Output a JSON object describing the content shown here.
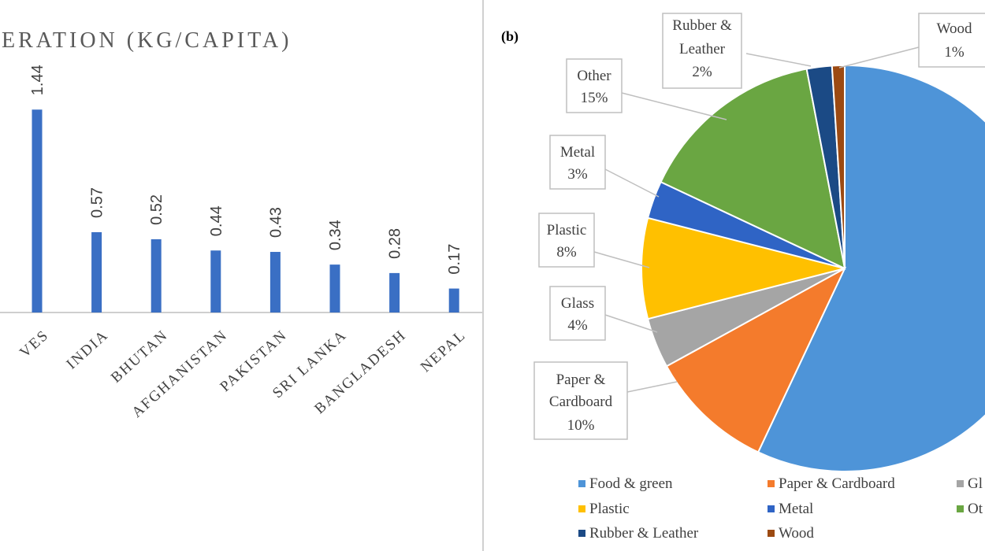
{
  "left_panel": {
    "title_fragment": "ERATION (KG/CAPITA)"
  },
  "right_panel": {
    "panel_label": "(b)"
  },
  "chart_data": [
    {
      "type": "bar",
      "title": "ERATION (KG/CAPITA)",
      "categories": [
        "VES",
        "INDIA",
        "BHUTAN",
        "AFGHANISTAN",
        "PAKISTAN",
        "SRI LANKA",
        "BANGLADESH",
        "NEPAL"
      ],
      "values": [
        1.44,
        0.57,
        0.52,
        0.44,
        0.43,
        0.34,
        0.28,
        0.17
      ],
      "value_labels": [
        "1.44",
        "0.57",
        "0.52",
        "0.44",
        "0.43",
        "0.34",
        "0.28",
        "0.17"
      ],
      "bar_color": "#3a6fc4",
      "ylim": [
        0,
        1.6
      ],
      "grid": false
    },
    {
      "type": "pie",
      "title": "",
      "slices": [
        {
          "name": "Food & green",
          "value": 57,
          "label": "",
          "color": "#4e94d8"
        },
        {
          "name": "Paper & Cardboard",
          "value": 10,
          "label": "10%",
          "color": "#f47b2c"
        },
        {
          "name": "Glass",
          "value": 4,
          "label": "4%",
          "color": "#a5a5a5"
        },
        {
          "name": "Plastic",
          "value": 8,
          "label": "8%",
          "color": "#ffc000"
        },
        {
          "name": "Metal",
          "value": 3,
          "label": "3%",
          "color": "#2f64c5"
        },
        {
          "name": "Other",
          "value": 15,
          "label": "15%",
          "color": "#6aa642"
        },
        {
          "name": "Rubber & Leather",
          "value": 2,
          "label": "2%",
          "color": "#1b4a85"
        },
        {
          "name": "Wood",
          "value": 1,
          "label": "1%",
          "color": "#9c4a12"
        }
      ],
      "callouts": [
        {
          "lines": [
            "Rubber &",
            "Leather",
            "2%"
          ]
        },
        {
          "lines": [
            "Wood",
            "1%"
          ]
        },
        {
          "lines": [
            "Other",
            "15%"
          ]
        },
        {
          "lines": [
            "Metal",
            "3%"
          ]
        },
        {
          "lines": [
            "Plastic",
            "8%"
          ]
        },
        {
          "lines": [
            "Glass",
            "4%"
          ]
        },
        {
          "lines": [
            "Paper &",
            "Cardboard",
            "10%"
          ]
        }
      ],
      "legend": [
        "Food & green",
        "Paper & Cardboard",
        "Gl",
        "Plastic",
        "Metal",
        "Ot",
        "Rubber & Leather",
        "Wood"
      ],
      "legend_placement": "bottom"
    }
  ]
}
